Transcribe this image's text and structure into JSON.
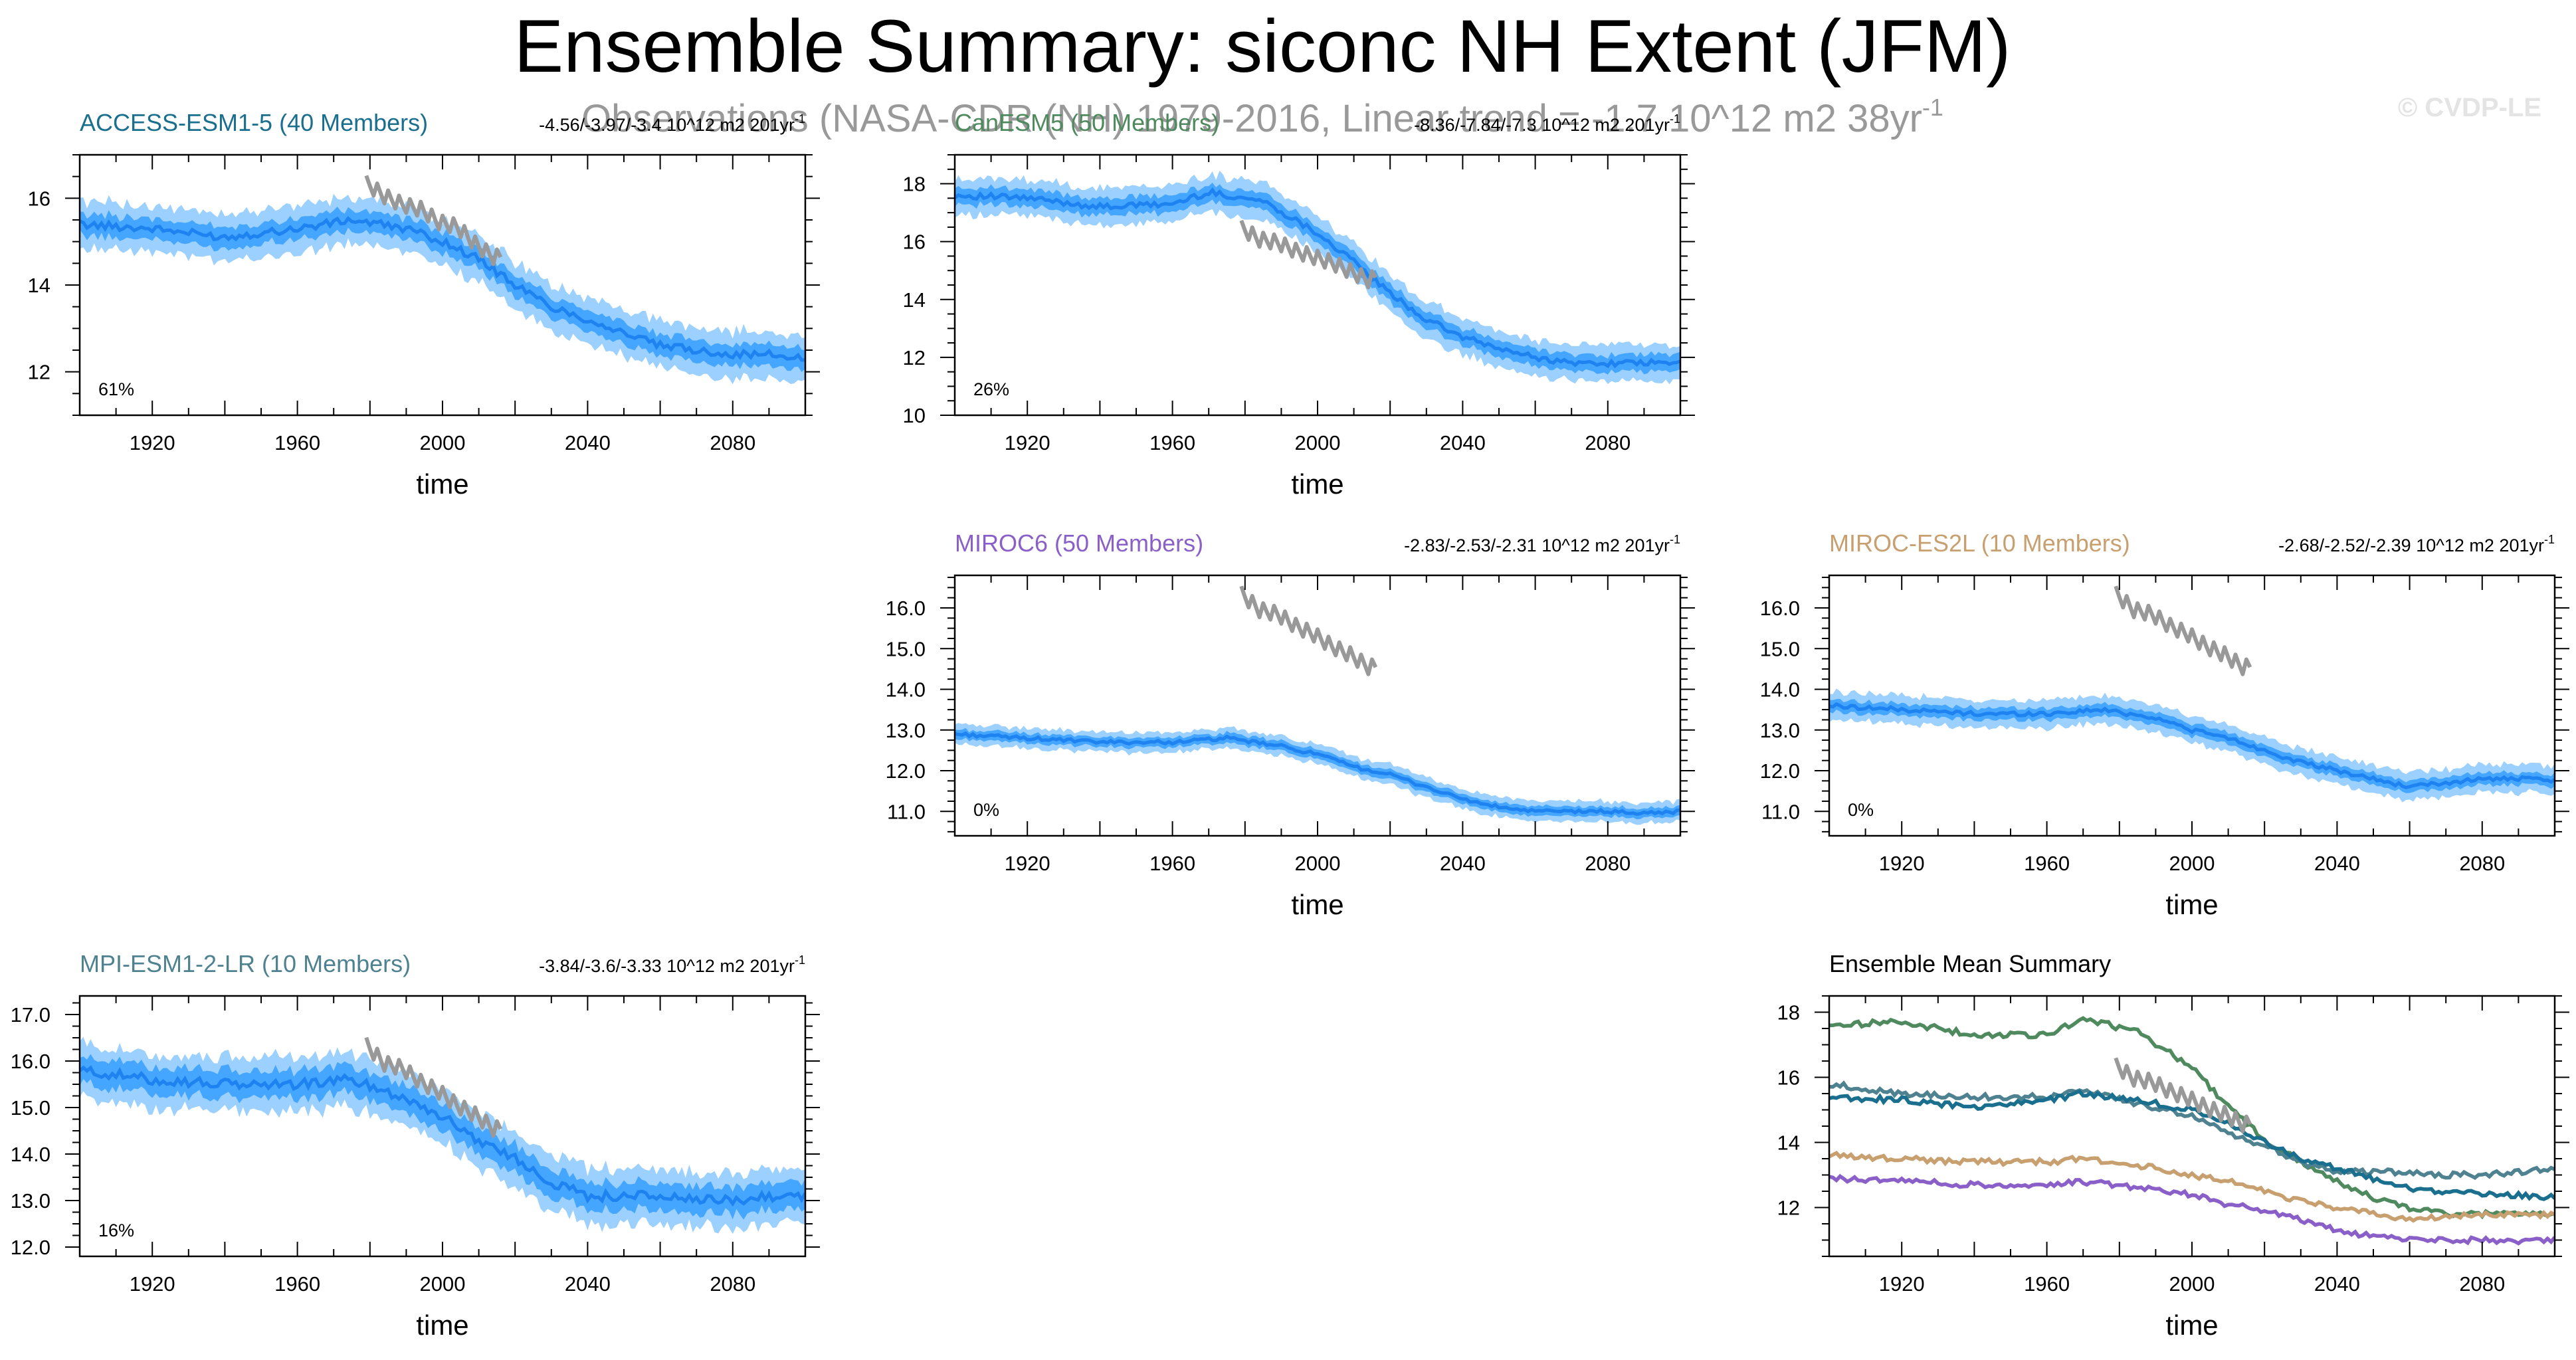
{
  "page": {
    "title": "Ensemble Summary: siconc NH Extent (JFM)",
    "watermark": "© CVDP-LE",
    "observations": {
      "label": "Observations (NASA-CDR (NH) 1979-2016, Linear trend = -1.7 10^12 m2 38yr",
      "superscript": "-1",
      "color": "#999999"
    },
    "colors": {
      "spread_outer": "#9bd0ff",
      "spread_inner": "#45a6ff",
      "ensemble_mean": "#1e82f0",
      "obs_line": "#999999"
    }
  },
  "chart_data": [
    {
      "id": "access",
      "type": "area",
      "model": "ACCESS-ESM1-5 (40 Members)",
      "model_color": "#1a6e8e",
      "trend_text": "-4.56/-3.97/-3.4 10^12 m2 201yr",
      "trend_sup": "-1",
      "percent": "61%",
      "xlabel": "time",
      "xlim": [
        1900,
        2100
      ],
      "ylim": [
        11.0,
        17.0
      ],
      "yticks": [
        12,
        14,
        16
      ],
      "ytick_labels": [
        "12",
        "14",
        "16"
      ],
      "xticks": [
        1920,
        1960,
        2000,
        2040,
        2080
      ],
      "xtick_labels": [
        "1920",
        "1960",
        "2000",
        "2040",
        "2080"
      ],
      "mean_x": [
        1900,
        1920,
        1940,
        1960,
        1975,
        1990,
        2000,
        2010,
        2020,
        2030,
        2040,
        2050,
        2060,
        2070,
        2080,
        2090,
        2100
      ],
      "mean_y": [
        15.4,
        15.3,
        15.1,
        15.3,
        15.5,
        15.3,
        15.0,
        14.6,
        14.0,
        13.5,
        13.2,
        12.9,
        12.6,
        12.5,
        12.4,
        12.4,
        12.3
      ],
      "inner_halfwidth": 0.25,
      "outer_halfwidth": 0.55,
      "obs_x": [
        1979,
        1984,
        1989,
        1994,
        1999,
        2004,
        2009,
        2014,
        2016
      ],
      "obs_y": [
        16.3,
        16.0,
        15.8,
        15.7,
        15.4,
        15.3,
        14.9,
        14.6,
        14.6
      ]
    },
    {
      "id": "canesm5",
      "type": "area",
      "model": "CanESM5 (50 Members)",
      "model_color": "#4f8a5e",
      "trend_text": "-8.36/-7.84/-7.3 10^12 m2 201yr",
      "trend_sup": "-1",
      "percent": "26%",
      "xlabel": "time",
      "xlim": [
        1900,
        2100
      ],
      "ylim": [
        10.0,
        19.0
      ],
      "yticks": [
        10,
        12,
        14,
        16,
        18
      ],
      "ytick_labels": [
        "10",
        "12",
        "14",
        "16",
        "18"
      ],
      "xticks": [
        1920,
        1960,
        2000,
        2040,
        2080
      ],
      "xtick_labels": [
        "1920",
        "1960",
        "2000",
        "2040",
        "2080"
      ],
      "mean_x": [
        1900,
        1920,
        1940,
        1960,
        1970,
        1985,
        2000,
        2010,
        2020,
        2030,
        2040,
        2050,
        2060,
        2070,
        2080,
        2090,
        2100
      ],
      "mean_y": [
        17.6,
        17.5,
        17.2,
        17.3,
        17.7,
        17.4,
        16.3,
        15.3,
        14.2,
        13.3,
        12.7,
        12.3,
        12.0,
        11.8,
        11.8,
        11.8,
        11.8
      ],
      "inner_halfwidth": 0.3,
      "outer_halfwidth": 0.65,
      "obs_x": [
        1979,
        1984,
        1989,
        1994,
        1999,
        2004,
        2009,
        2014,
        2016
      ],
      "obs_y": [
        16.4,
        16.0,
        15.9,
        15.6,
        15.4,
        15.2,
        14.9,
        14.6,
        14.7
      ]
    },
    {
      "id": "miroc6",
      "type": "area",
      "model": "MIROC6 (50 Members)",
      "model_color": "#8a60c8",
      "trend_text": "-2.83/-2.53/-2.31 10^12 m2 201yr",
      "trend_sup": "-1",
      "percent": "0%",
      "xlabel": "time",
      "xlim": [
        1900,
        2100
      ],
      "ylim": [
        10.4,
        16.8
      ],
      "yticks": [
        11,
        12,
        13,
        14,
        15,
        16
      ],
      "ytick_labels": [
        "11.0",
        "12.0",
        "13.0",
        "14.0",
        "15.0",
        "16.0"
      ],
      "xticks": [
        1920,
        1960,
        2000,
        2040,
        2080
      ],
      "xtick_labels": [
        "1920",
        "1960",
        "2000",
        "2040",
        "2080"
      ],
      "mean_x": [
        1900,
        1920,
        1940,
        1960,
        1975,
        1990,
        2000,
        2010,
        2020,
        2030,
        2040,
        2050,
        2060,
        2070,
        2080,
        2090,
        2100
      ],
      "mean_y": [
        12.9,
        12.8,
        12.7,
        12.7,
        12.8,
        12.6,
        12.4,
        12.1,
        11.9,
        11.6,
        11.3,
        11.1,
        11.0,
        11.0,
        11.0,
        10.95,
        11.0
      ],
      "inner_halfwidth": 0.12,
      "outer_halfwidth": 0.25,
      "obs_x": [
        1979,
        1984,
        1989,
        1994,
        1999,
        2004,
        2009,
        2014,
        2016
      ],
      "obs_y": [
        16.3,
        15.9,
        15.8,
        15.5,
        15.3,
        15.0,
        14.8,
        14.5,
        14.5
      ]
    },
    {
      "id": "mirocesl",
      "type": "area",
      "model": "MIROC-ES2L (10 Members)",
      "model_color": "#c8a070",
      "trend_text": "-2.68/-2.52/-2.39 10^12 m2 201yr",
      "trend_sup": "-1",
      "percent": "0%",
      "xlabel": "time",
      "xlim": [
        1900,
        2100
      ],
      "ylim": [
        10.4,
        16.8
      ],
      "yticks": [
        11,
        12,
        13,
        14,
        15,
        16
      ],
      "ytick_labels": [
        "11.0",
        "12.0",
        "13.0",
        "14.0",
        "15.0",
        "16.0"
      ],
      "xticks": [
        1920,
        1960,
        2000,
        2040,
        2080
      ],
      "xtick_labels": [
        "1920",
        "1960",
        "2000",
        "2040",
        "2080"
      ],
      "mean_x": [
        1900,
        1920,
        1940,
        1960,
        1975,
        1990,
        2000,
        2010,
        2020,
        2030,
        2040,
        2050,
        2060,
        2070,
        2080,
        2090,
        2100
      ],
      "mean_y": [
        13.6,
        13.5,
        13.4,
        13.4,
        13.5,
        13.3,
        13.0,
        12.8,
        12.5,
        12.2,
        12.0,
        11.8,
        11.6,
        11.7,
        11.8,
        11.8,
        11.75
      ],
      "inner_halfwidth": 0.15,
      "outer_halfwidth": 0.35,
      "obs_x": [
        1979,
        1984,
        1989,
        1994,
        1999,
        2004,
        2009,
        2014,
        2016
      ],
      "obs_y": [
        16.3,
        15.9,
        15.8,
        15.5,
        15.3,
        15.0,
        14.8,
        14.5,
        14.5
      ]
    },
    {
      "id": "mpi",
      "type": "area",
      "model": "MPI-ESM1-2-LR (10 Members)",
      "model_color": "#4f8290",
      "trend_text": "-3.84/-3.6/-3.33 10^12 m2 201yr",
      "trend_sup": "-1",
      "percent": "16%",
      "xlabel": "time",
      "xlim": [
        1900,
        2100
      ],
      "ylim": [
        11.8,
        17.4
      ],
      "yticks": [
        12,
        13,
        14,
        15,
        16,
        17
      ],
      "ytick_labels": [
        "12.0",
        "13.0",
        "14.0",
        "15.0",
        "16.0",
        "17.0"
      ],
      "xticks": [
        1920,
        1960,
        2000,
        2040,
        2080
      ],
      "xtick_labels": [
        "1920",
        "1960",
        "2000",
        "2040",
        "2080"
      ],
      "mean_x": [
        1900,
        1920,
        1940,
        1960,
        1975,
        1990,
        2000,
        2010,
        2020,
        2030,
        2040,
        2050,
        2060,
        2070,
        2080,
        2090,
        2100
      ],
      "mean_y": [
        15.8,
        15.6,
        15.5,
        15.5,
        15.6,
        15.2,
        14.8,
        14.3,
        13.9,
        13.4,
        13.1,
        13.1,
        13.1,
        13.0,
        13.0,
        13.1,
        13.1
      ],
      "inner_halfwidth": 0.3,
      "outer_halfwidth": 0.6,
      "obs_x": [
        1979,
        1984,
        1989,
        1994,
        1999,
        2004,
        2009,
        2014,
        2016
      ],
      "obs_y": [
        16.3,
        15.9,
        15.8,
        15.5,
        15.3,
        15.0,
        14.8,
        14.5,
        14.5
      ]
    },
    {
      "id": "summary",
      "type": "line",
      "title": "Ensemble Mean Summary",
      "xlabel": "time",
      "xlim": [
        1900,
        2100
      ],
      "ylim": [
        10.5,
        18.5
      ],
      "yticks": [
        12,
        14,
        16,
        18
      ],
      "ytick_labels": [
        "12",
        "14",
        "16",
        "18"
      ],
      "xticks": [
        1920,
        1960,
        2000,
        2040,
        2080
      ],
      "xtick_labels": [
        "1920",
        "1960",
        "2000",
        "2040",
        "2080"
      ],
      "x": [
        1900,
        1920,
        1940,
        1960,
        1970,
        1985,
        2000,
        2010,
        2020,
        2030,
        2040,
        2050,
        2060,
        2070,
        2080,
        2090,
        2100
      ],
      "series": [
        {
          "name": "CanESM5",
          "color": "#4f8a5e",
          "values": [
            17.6,
            17.7,
            17.3,
            17.3,
            17.8,
            17.4,
            16.3,
            15.1,
            14.1,
            13.4,
            12.8,
            12.3,
            12.0,
            11.8,
            11.8,
            11.8,
            11.8
          ]
        },
        {
          "name": "MPI-ESM1-2-LR",
          "color": "#4f8290",
          "values": [
            15.8,
            15.5,
            15.4,
            15.4,
            15.6,
            15.2,
            14.8,
            14.3,
            13.9,
            13.4,
            13.1,
            13.1,
            13.1,
            13.0,
            13.0,
            13.1,
            13.2
          ]
        },
        {
          "name": "ACCESS-ESM1-5",
          "color": "#1a6e8e",
          "values": [
            15.4,
            15.3,
            15.1,
            15.3,
            15.5,
            15.3,
            15.0,
            14.6,
            14.0,
            13.5,
            13.2,
            12.9,
            12.6,
            12.5,
            12.4,
            12.4,
            12.3
          ]
        },
        {
          "name": "MIROC-ES2L",
          "color": "#c8a070",
          "values": [
            13.6,
            13.5,
            13.4,
            13.4,
            13.5,
            13.3,
            13.0,
            12.8,
            12.5,
            12.2,
            12.0,
            11.8,
            11.6,
            11.7,
            11.8,
            11.8,
            11.75
          ]
        },
        {
          "name": "MIROC6",
          "color": "#8a60c8",
          "values": [
            12.9,
            12.8,
            12.7,
            12.7,
            12.8,
            12.6,
            12.4,
            12.1,
            11.9,
            11.6,
            11.3,
            11.1,
            11.0,
            11.0,
            11.0,
            10.95,
            11.0
          ]
        }
      ],
      "obs_x": [
        1979,
        1984,
        1989,
        1994,
        1999,
        2004,
        2009,
        2014,
        2016
      ],
      "obs_y": [
        16.3,
        15.9,
        15.8,
        15.5,
        15.3,
        15.0,
        14.8,
        14.5,
        14.5
      ]
    }
  ]
}
